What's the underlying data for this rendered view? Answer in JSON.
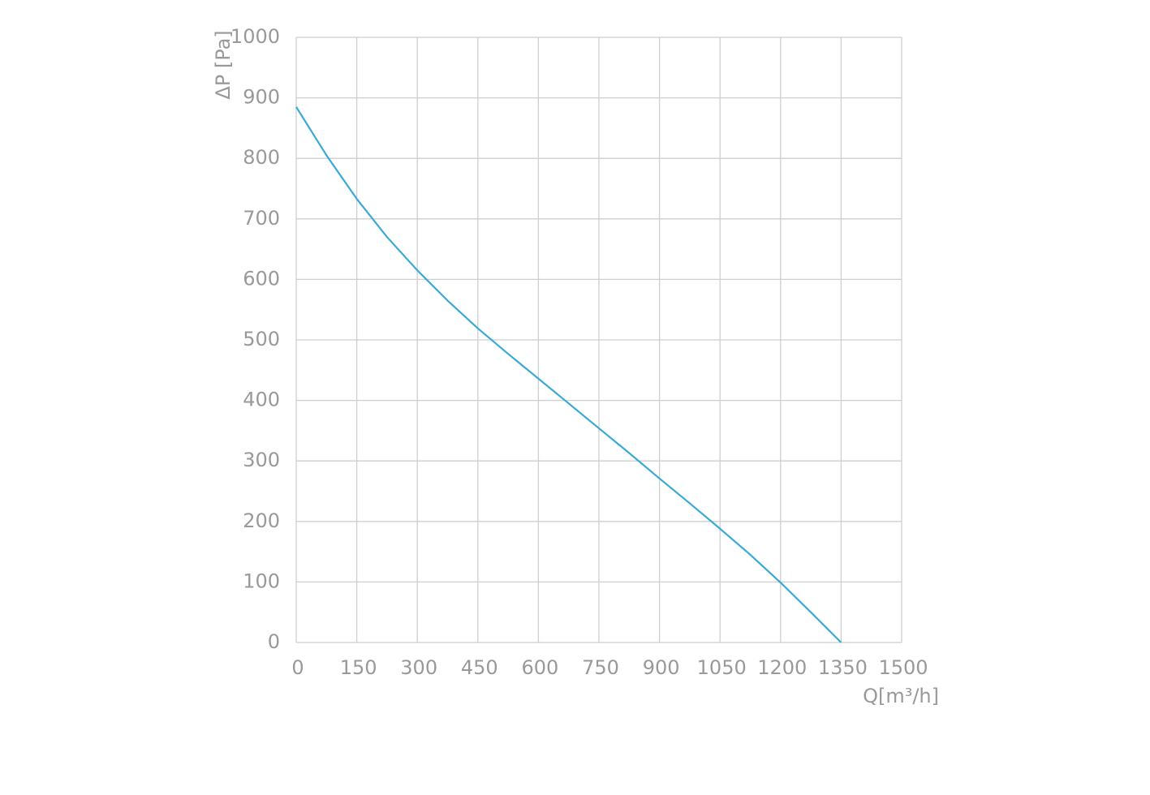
{
  "chart_data": {
    "type": "line",
    "y_label": "ΔP [Pa]",
    "x_label": "Q[m³/h]",
    "x": [
      0,
      75,
      150,
      225,
      300,
      375,
      450,
      525,
      600,
      675,
      750,
      825,
      900,
      975,
      1050,
      1125,
      1200,
      1275,
      1350
    ],
    "values": [
      885,
      805,
      733,
      670,
      615,
      565,
      519,
      477,
      436,
      395,
      354,
      313,
      271,
      230,
      188,
      145,
      99,
      50,
      0
    ],
    "color": "#3aa9d6",
    "xlim": [
      0,
      1500
    ],
    "xticks": [
      0,
      150,
      300,
      450,
      600,
      750,
      900,
      1050,
      1200,
      1350,
      1500
    ],
    "ylim": [
      0,
      1000
    ],
    "yticks": [
      0,
      100,
      200,
      300,
      400,
      500,
      600,
      700,
      800,
      900,
      1000
    ],
    "grid": true
  }
}
